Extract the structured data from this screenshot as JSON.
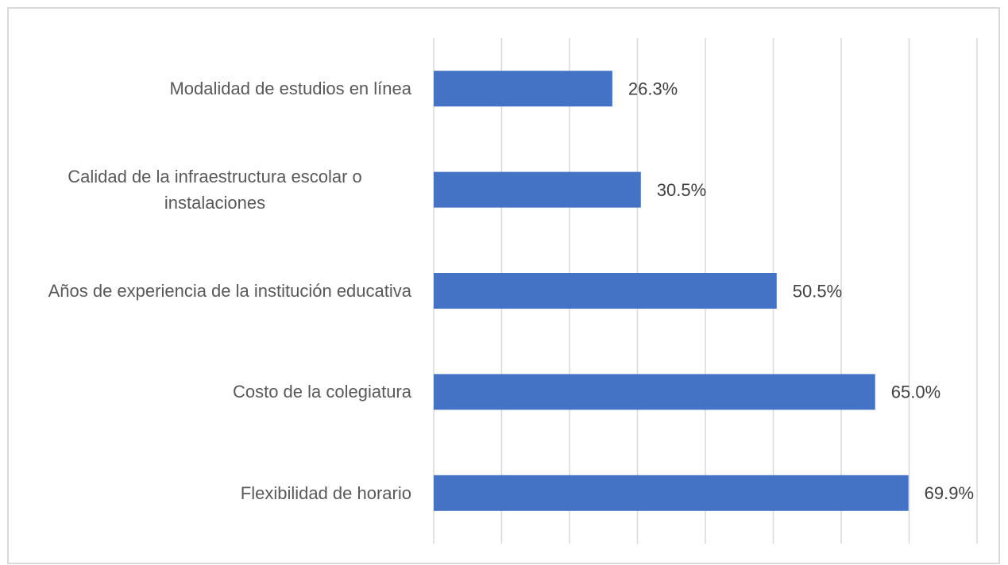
{
  "chart_data": {
    "type": "barh",
    "categories": [
      "Modalidad de estudios en línea",
      "Calidad de la infraestructura escolar o instalaciones",
      "Años de experiencia de la institución educativa",
      "Costo de la colegiatura",
      "Flexibilidad de horario"
    ],
    "values": [
      26.3,
      30.5,
      50.5,
      65.0,
      69.9
    ],
    "value_labels": [
      "26.3%",
      "30.5%",
      "50.5%",
      "65.0%",
      "69.9%"
    ],
    "color": "#4472c4",
    "xlim": [
      0,
      80
    ],
    "xticks": [
      0,
      10,
      20,
      30,
      40,
      50,
      60,
      70,
      80
    ],
    "grid": true
  }
}
